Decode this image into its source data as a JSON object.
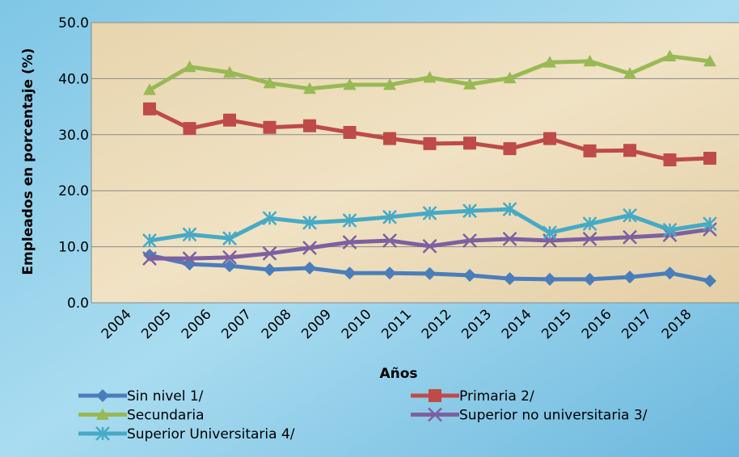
{
  "chart_data": {
    "type": "line",
    "x_label": "Años",
    "y_label": "Empleados en porcentaje (%)",
    "categories": [
      "2004",
      "2005",
      "2006",
      "2007",
      "2008",
      "2009",
      "2010",
      "2011",
      "2012",
      "2013",
      "2014",
      "2015",
      "2016",
      "2017",
      "2018"
    ],
    "ylim": [
      0,
      50
    ],
    "yticks": [
      {
        "value": 0,
        "label": "0.0"
      },
      {
        "value": 10,
        "label": "10.0"
      },
      {
        "value": 20,
        "label": "20.0"
      },
      {
        "value": 30,
        "label": "30.0"
      },
      {
        "value": 40,
        "label": "40.0"
      },
      {
        "value": 50,
        "label": "50.0"
      }
    ],
    "grid": true,
    "legend": "bottom",
    "series": [
      {
        "name": "Sin nivel 1/",
        "color": "#4a7ebb",
        "marker": "diamond",
        "values": [
          8.5,
          6.9,
          6.6,
          5.9,
          6.2,
          5.3,
          5.3,
          5.2,
          4.9,
          4.3,
          4.2,
          4.2,
          4.6,
          5.3,
          3.9
        ]
      },
      {
        "name": "Primaria 2/",
        "color": "#be4b48",
        "marker": "square",
        "values": [
          34.6,
          31.1,
          32.6,
          31.3,
          31.6,
          30.4,
          29.3,
          28.4,
          28.5,
          27.5,
          29.3,
          27.1,
          27.2,
          25.5,
          25.8
        ]
      },
      {
        "name": "Secundaria",
        "color": "#98b954",
        "marker": "triangle",
        "values": [
          38.0,
          42.1,
          41.1,
          39.2,
          38.2,
          38.9,
          38.9,
          40.2,
          39.0,
          40.1,
          42.9,
          43.1,
          40.9,
          44.0,
          43.1
        ]
      },
      {
        "name": "Superior no universitaria 3/",
        "color": "#7d60a0",
        "marker": "x",
        "values": [
          7.9,
          7.9,
          8.1,
          8.8,
          9.8,
          10.8,
          11.1,
          10.1,
          11.1,
          11.4,
          11.1,
          11.4,
          11.7,
          12.1,
          13.1
        ]
      },
      {
        "name": "Superior Universitaria 4/",
        "color": "#46aac5",
        "marker": "star",
        "values": [
          11.1,
          12.2,
          11.5,
          15.1,
          14.3,
          14.7,
          15.3,
          16.0,
          16.4,
          16.7,
          12.5,
          14.1,
          15.6,
          13.0,
          14.1
        ]
      }
    ]
  }
}
